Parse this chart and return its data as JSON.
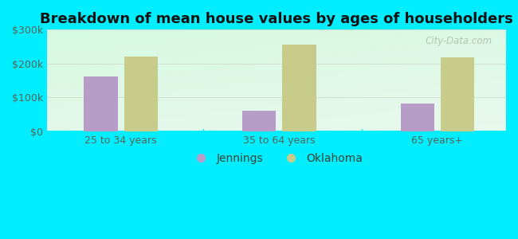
{
  "title": "Breakdown of mean house values by ages of householders",
  "categories": [
    "25 to 34 years",
    "35 to 64 years",
    "65 years+"
  ],
  "jennings_values": [
    163000,
    60000,
    83000
  ],
  "oklahoma_values": [
    220000,
    255000,
    218000
  ],
  "jennings_color": "#b89cc8",
  "oklahoma_color": "#c8cc8a",
  "background_outer": "#00eeff",
  "ylim": [
    0,
    300000
  ],
  "yticks": [
    0,
    100000,
    200000,
    300000
  ],
  "ytick_labels": [
    "$0",
    "$100k",
    "$200k",
    "$300k"
  ],
  "legend_jennings": "Jennings",
  "legend_oklahoma": "Oklahoma",
  "bar_width": 0.32,
  "title_fontsize": 13,
  "tick_fontsize": 9,
  "legend_fontsize": 10
}
